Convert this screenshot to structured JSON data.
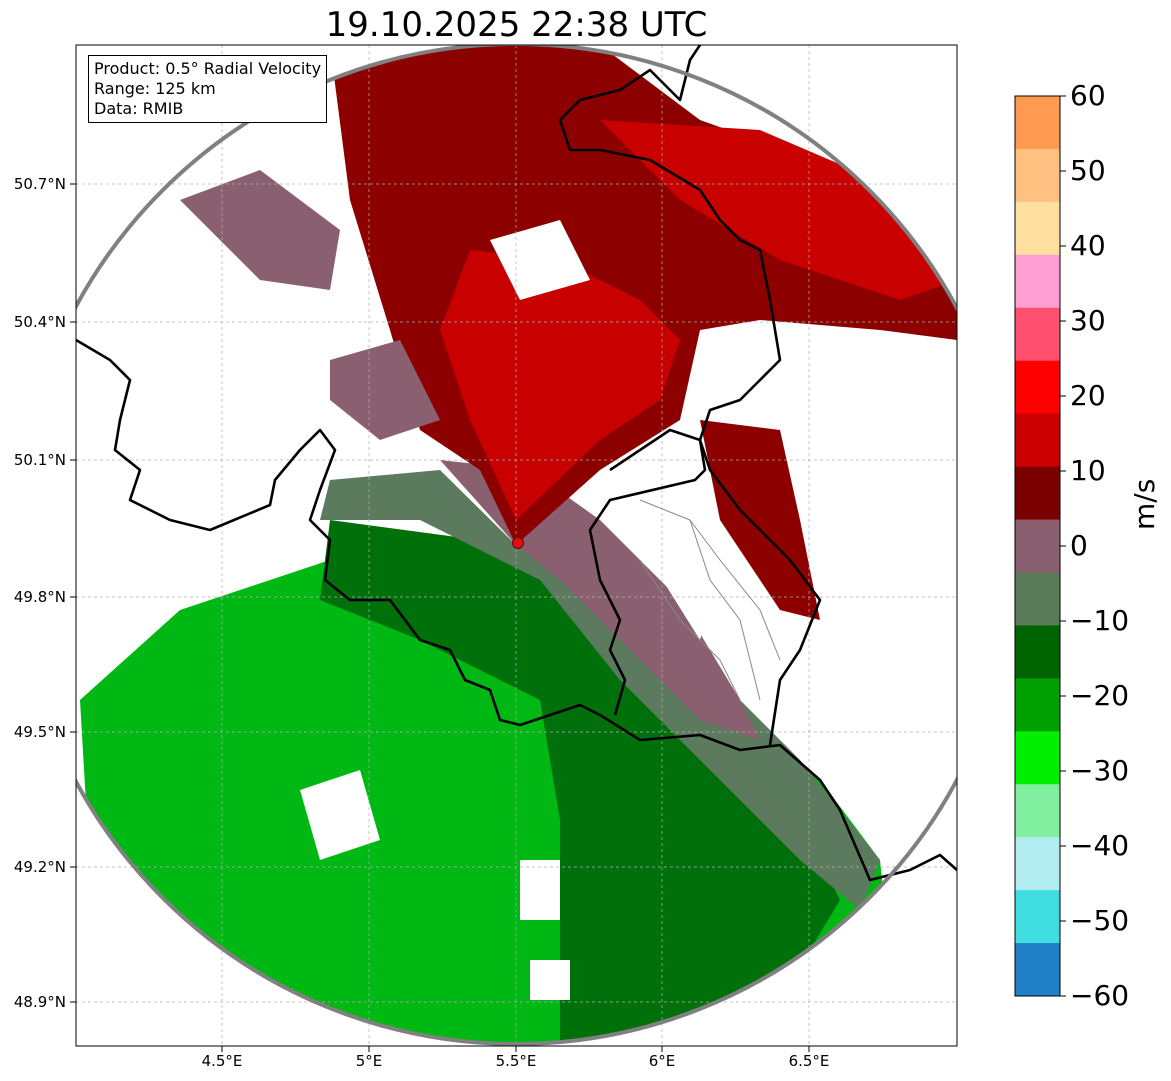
{
  "title": "19.10.2025 22:38 UTC",
  "info": {
    "product": "Product: 0.5° Radial Velocity",
    "range": "Range: 125 km",
    "data_source": "Data: RMIB"
  },
  "axes": {
    "lat_labels": [
      "50.7°N",
      "50.4°N",
      "50.1°N",
      "49.8°N",
      "49.5°N",
      "49.2°N",
      "48.9°N"
    ],
    "lon_labels": [
      "4.5°E",
      "5°E",
      "5.5°E",
      "6°E",
      "6.5°E"
    ],
    "lat_values": [
      50.7,
      50.4,
      50.1,
      49.8,
      49.5,
      49.2,
      48.9
    ],
    "lon_values": [
      4.5,
      5.0,
      5.5,
      6.0,
      6.5
    ],
    "lat_range": [
      48.8,
      50.99
    ],
    "lon_range": [
      4.0,
      7.0
    ]
  },
  "radar": {
    "site_lon": 5.5,
    "site_lat": 49.91,
    "range_km": 125,
    "marker_color": "#e01010"
  },
  "colorbar": {
    "unit": "m/s",
    "min": -60,
    "max": 60,
    "ticks": [
      "60",
      "50",
      "40",
      "30",
      "20",
      "10",
      "0",
      "−10",
      "−20",
      "−30",
      "−40",
      "−50",
      "−60"
    ],
    "colors": [
      "#ff9a50",
      "#ffc080",
      "#ffe0a0",
      "#ff9ed0",
      "#ff5070",
      "#ff0000",
      "#cc0000",
      "#7a0000",
      "#8a6070",
      "#5a7a5a",
      "#006400",
      "#00a000",
      "#00ee00",
      "#80f0a0",
      "#b0ecf0",
      "#40dde0",
      "#2080c8"
    ]
  },
  "colors": {
    "inbound_dark": "#00700a",
    "inbound_bright": "#00b814",
    "outbound_dark": "#8c0000",
    "outbound_bright": "#c80000",
    "near_zero_red": "#8a6070",
    "near_zero_green": "#5c7a5e",
    "border": "#000000",
    "range_ring": "#808080"
  }
}
